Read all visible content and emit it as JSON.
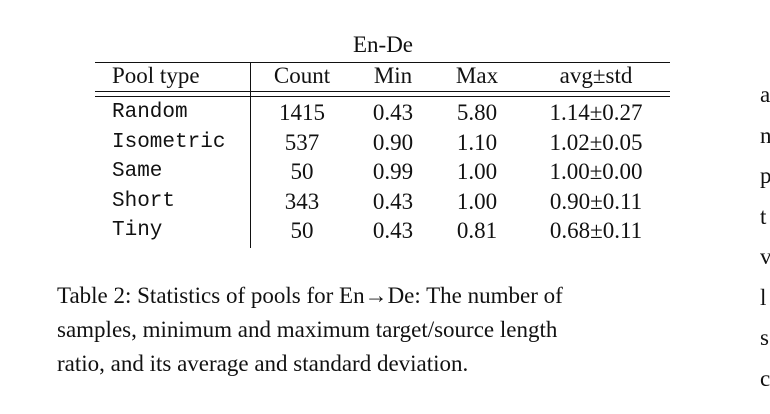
{
  "table": {
    "title": "En-De",
    "header": [
      "Pool type",
      "Count",
      "Min",
      "Max",
      "avg±std"
    ],
    "rows": [
      [
        "Random",
        "1415",
        "0.43",
        "5.80",
        "1.14±0.27"
      ],
      [
        "Isometric",
        "537",
        "0.90",
        "1.10",
        "1.02±0.05"
      ],
      [
        "Same",
        "50",
        "0.99",
        "1.00",
        "1.00±0.00"
      ],
      [
        "Short",
        "343",
        "0.43",
        "1.00",
        "0.90±0.11"
      ],
      [
        "Tiny",
        "50",
        "0.43",
        "0.81",
        "0.68±0.11"
      ]
    ]
  },
  "caption": {
    "lines": [
      "Table 2: Statistics of pools for En→De: The number of",
      "samples, minimum and maximum target/source length",
      "ratio, and its average and standard deviation."
    ]
  },
  "side_text": [
    "a",
    "n",
    "p",
    "t",
    "v",
    "l",
    "s",
    "c"
  ]
}
